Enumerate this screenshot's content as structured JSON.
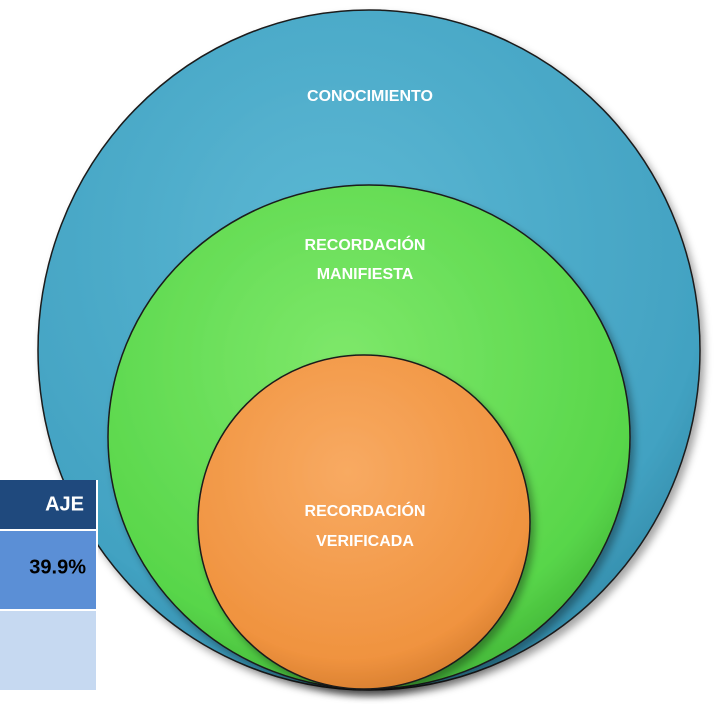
{
  "diagram": {
    "circles": [
      {
        "lines": [
          "CONOCIMIENTO"
        ]
      },
      {
        "lines": [
          "RECORDACIÓN",
          "MANIFIESTA"
        ]
      },
      {
        "lines": [
          "RECORDACIÓN",
          "VERIFICADA"
        ]
      }
    ]
  },
  "table": {
    "header": "AJE",
    "rows": [
      [
        "39.9%"
      ]
    ]
  }
}
